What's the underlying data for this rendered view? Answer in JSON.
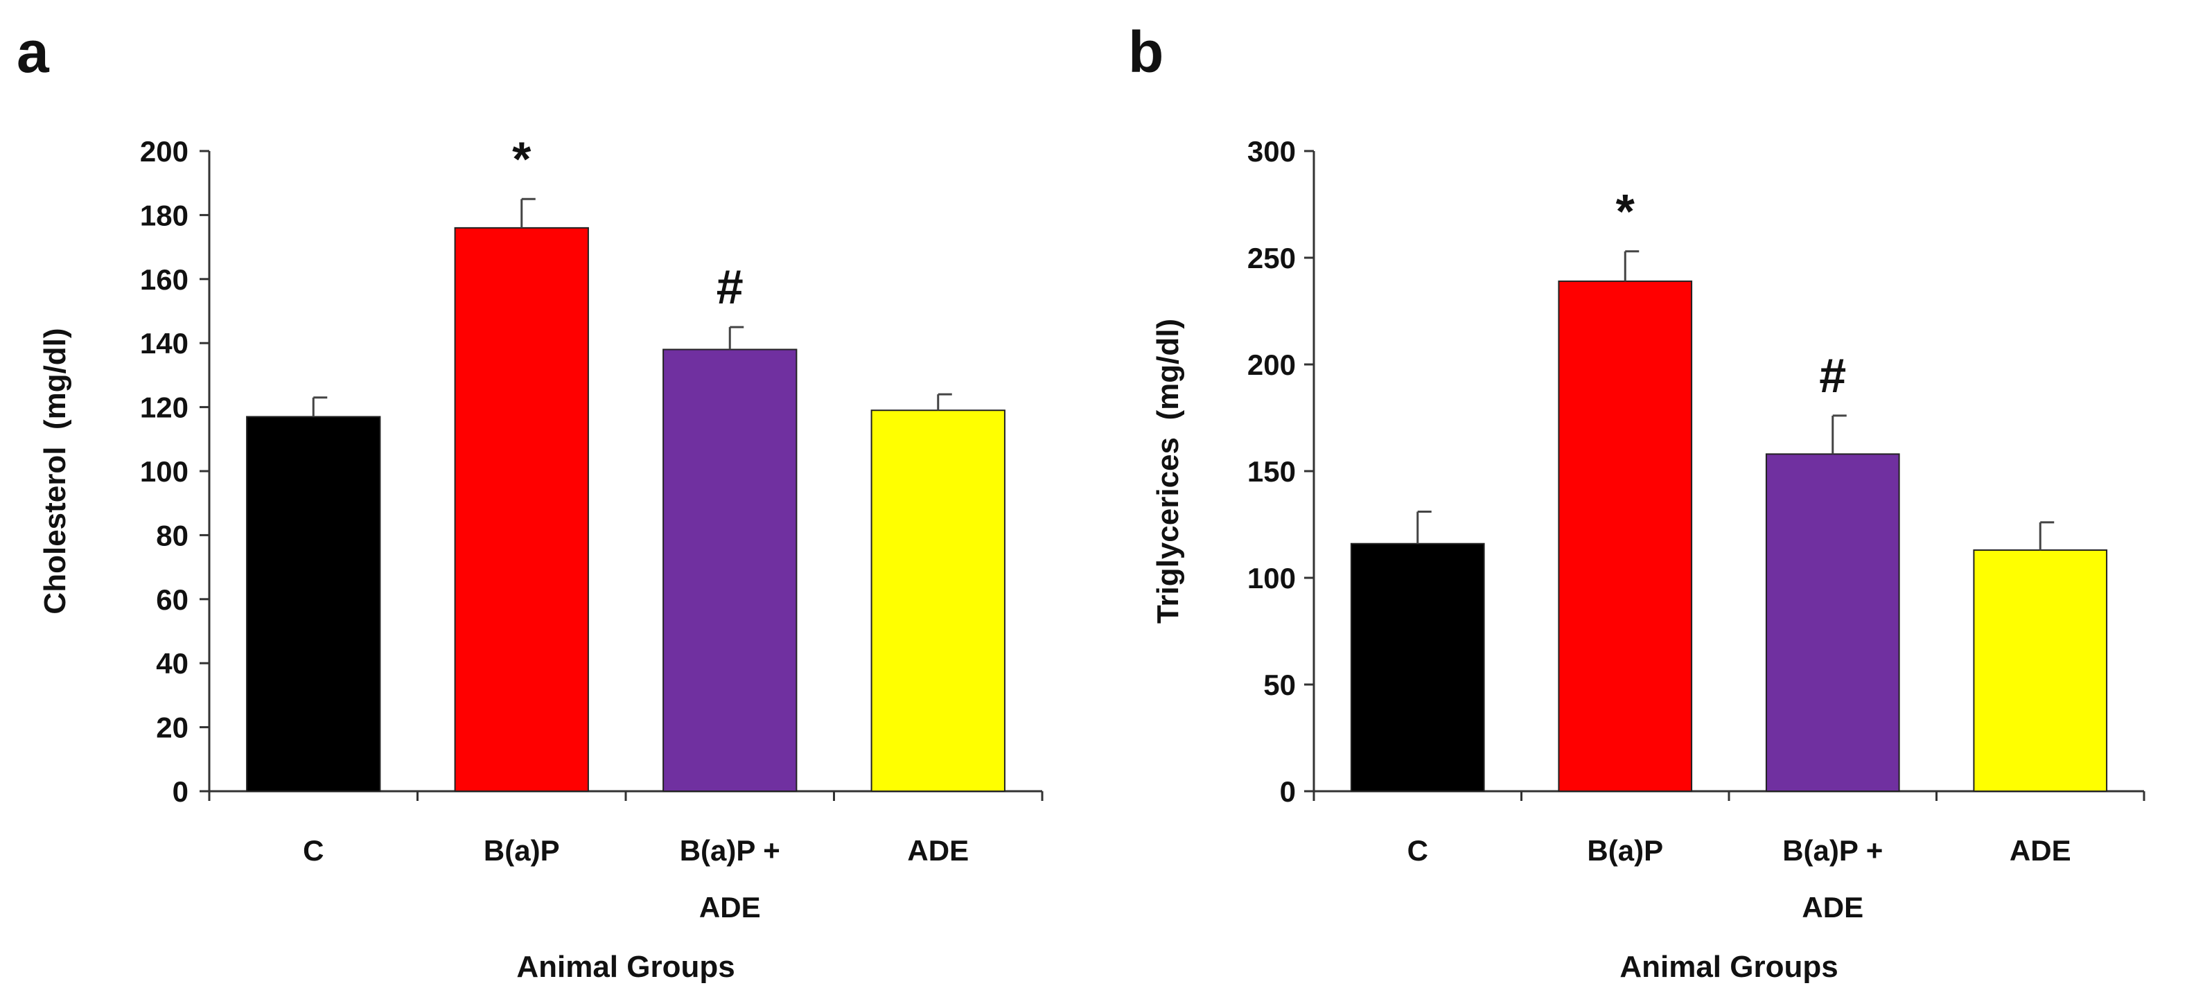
{
  "figure": {
    "panels": [
      "a",
      "b"
    ]
  },
  "chart_data": [
    {
      "panel_label": "a",
      "type": "bar",
      "title": "",
      "categories": [
        [
          "C"
        ],
        [
          "B(a)P"
        ],
        [
          "B(a)P +",
          "ADE"
        ],
        [
          "ADE"
        ]
      ],
      "values": [
        117,
        176,
        138,
        119
      ],
      "errors": [
        6,
        9,
        7,
        5
      ],
      "colors": [
        "#000000",
        "#ff0000",
        "#7030a0",
        "#ffff00"
      ],
      "annotations": [
        "",
        "*",
        "#",
        ""
      ],
      "xlabel": "Animal Groups",
      "ylabel": "Cholesterol  (mg/dl)",
      "ylim": [
        0,
        200
      ],
      "yticks": [
        0,
        20,
        40,
        60,
        80,
        100,
        120,
        140,
        160,
        180,
        200
      ],
      "grid": false,
      "legend": "none"
    },
    {
      "panel_label": "b",
      "type": "bar",
      "title": "",
      "categories": [
        [
          "C"
        ],
        [
          "B(a)P"
        ],
        [
          "B(a)P +",
          "ADE"
        ],
        [
          "ADE"
        ]
      ],
      "values": [
        116,
        239,
        158,
        113
      ],
      "errors": [
        15,
        14,
        18,
        13
      ],
      "colors": [
        "#000000",
        "#ff0000",
        "#7030a0",
        "#ffff00"
      ],
      "annotations": [
        "",
        "*",
        "#",
        ""
      ],
      "xlabel": "Animal Groups",
      "ylabel": "Triglycerices  (mg/dl)",
      "ylim": [
        0,
        300
      ],
      "yticks": [
        0,
        50,
        100,
        150,
        200,
        250,
        300
      ],
      "grid": false,
      "legend": "none"
    }
  ]
}
